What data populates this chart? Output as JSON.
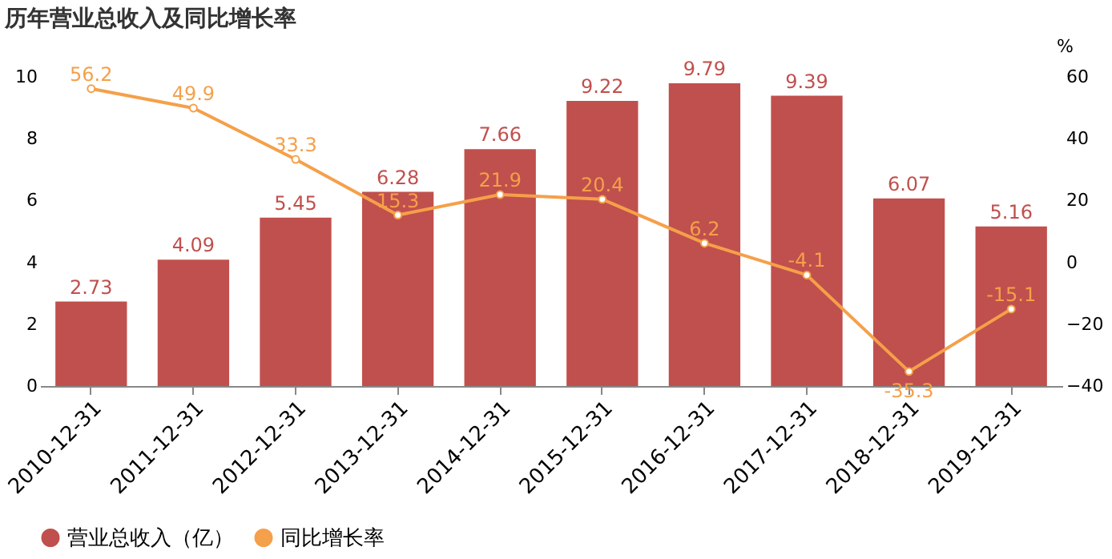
{
  "chart_data": {
    "type": "bar",
    "title": "历年营业总收入及同比增长率",
    "y2label": "%",
    "categories": [
      "2010-12-31",
      "2011-12-31",
      "2012-12-31",
      "2013-12-31",
      "2014-12-31",
      "2015-12-31",
      "2016-12-31",
      "2017-12-31",
      "2018-12-31",
      "2019-12-31"
    ],
    "series": [
      {
        "name": "营业总收入（亿）",
        "color": "#c0504d",
        "values": [
          2.73,
          4.09,
          5.45,
          6.28,
          7.66,
          9.22,
          9.79,
          9.39,
          6.07,
          5.16
        ]
      },
      {
        "name": "同比增长率",
        "type": "line",
        "axis": "y2",
        "color": "#f5a04a",
        "values": [
          56.2,
          49.9,
          33.3,
          15.3,
          21.9,
          20.4,
          6.2,
          -4.1,
          -35.3,
          -15.1
        ]
      }
    ],
    "ylim": [
      0,
      10
    ],
    "yticks": [
      0,
      2,
      4,
      6,
      8,
      10
    ],
    "y2lim": [
      -40,
      60
    ],
    "y2ticks": [
      -40,
      -20,
      0,
      20,
      40,
      60
    ],
    "data_labels": true,
    "legend": "bottom",
    "grid": false,
    "marker": "circle",
    "line_style": "solid"
  }
}
